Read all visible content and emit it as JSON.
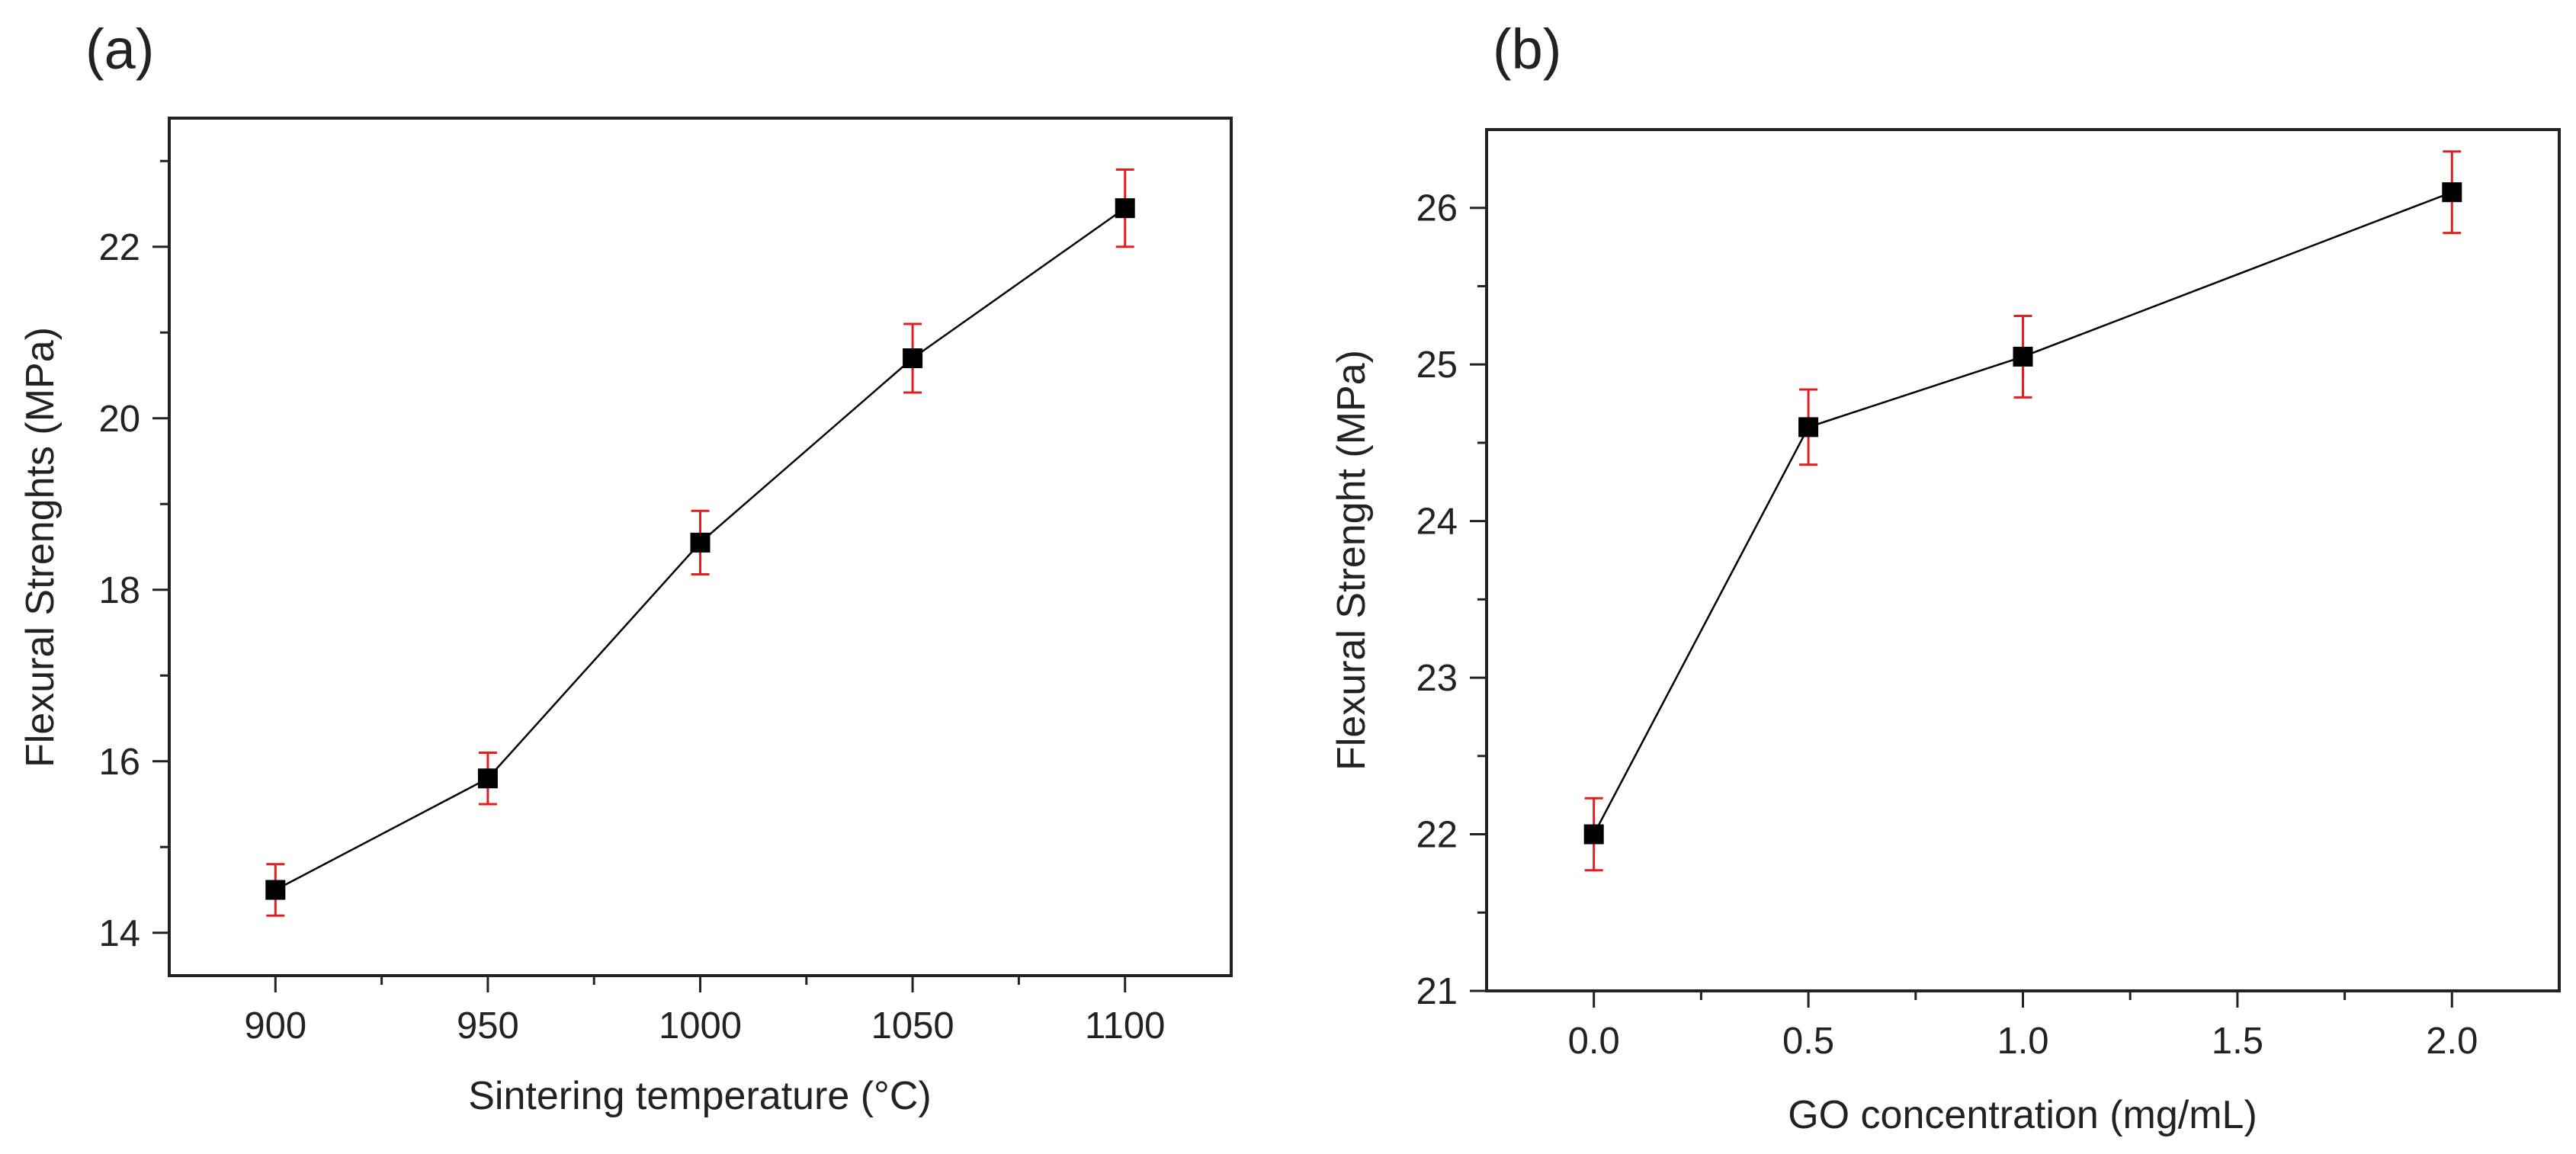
{
  "figure": {
    "panel_labels": [
      "(a)",
      "(b)"
    ]
  },
  "colors": {
    "axis": "#222222",
    "line": "#000000",
    "marker": "#000000",
    "error_bar": "#e02020",
    "background": "#ffffff"
  },
  "chart_data": [
    {
      "type": "line",
      "panel_label": "(a)",
      "title": "",
      "xlabel": "Sintering temperature (°C)",
      "ylabel": "Flexural Strenghts (MPa)",
      "xlim": [
        875,
        1125
      ],
      "ylim": [
        13.5,
        23.5
      ],
      "x_ticks": [
        900,
        950,
        1000,
        1050,
        1100
      ],
      "x_tick_labels": [
        "900",
        "950",
        "1000",
        "1050",
        "1100"
      ],
      "x_minor_ticks": [
        925,
        975,
        1025,
        1075
      ],
      "y_ticks": [
        14,
        16,
        18,
        20,
        22
      ],
      "y_tick_labels": [
        "14",
        "16",
        "18",
        "20",
        "22"
      ],
      "y_minor_ticks": [
        15,
        17,
        19,
        21,
        23
      ],
      "grid": false,
      "marker": "square",
      "series": [
        {
          "name": "Flexural Strenghts",
          "x": [
            900,
            950,
            1000,
            1050,
            1100
          ],
          "y": [
            14.5,
            15.8,
            18.55,
            20.7,
            22.45
          ],
          "error": [
            0.3,
            0.3,
            0.37,
            0.4,
            0.45
          ]
        }
      ]
    },
    {
      "type": "line",
      "panel_label": "(b)",
      "title": "",
      "xlabel": "GO concentration (mg/mL)",
      "ylabel": "Flexural Strenght (MPa)",
      "xlim": [
        -0.25,
        2.25
      ],
      "ylim": [
        21,
        26.5
      ],
      "x_ticks": [
        0.0,
        0.5,
        1.0,
        1.5,
        2.0
      ],
      "x_tick_labels": [
        "0.0",
        "0.5",
        "1.0",
        "1.5",
        "2.0"
      ],
      "x_minor_ticks": [
        0.25,
        0.75,
        1.25,
        1.75
      ],
      "y_ticks": [
        21,
        22,
        23,
        24,
        25,
        26
      ],
      "y_tick_labels": [
        "21",
        "22",
        "23",
        "24",
        "25",
        "26"
      ],
      "y_minor_ticks": [
        21.5,
        22.5,
        23.5,
        24.5,
        25.5
      ],
      "grid": false,
      "marker": "square",
      "series": [
        {
          "name": "Flexural Strenght",
          "x": [
            0.0,
            0.5,
            1.0,
            2.0
          ],
          "y": [
            22.0,
            24.6,
            25.05,
            26.1
          ],
          "error": [
            0.23,
            0.24,
            0.26,
            0.26
          ]
        }
      ]
    }
  ]
}
